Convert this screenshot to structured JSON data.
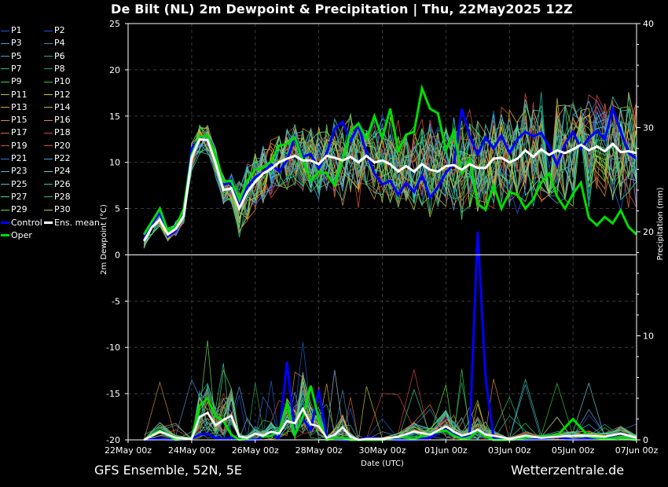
{
  "title": "De Bilt  (NL)  2m Dewpoint & Precipitation | Thu, 22May2025 12Z",
  "footer": {
    "left": "GFS Ensemble, 52N, 5E",
    "right": "Wetterzentrale.de"
  },
  "colors": {
    "background": "#000000",
    "grid": "#3a3a3a",
    "control": "#0000ff",
    "oper": "#00dd00",
    "mean": "#ffffff"
  },
  "legend": [
    {
      "label": "P1",
      "color": "#1d5fd6"
    },
    {
      "label": "P2",
      "color": "#2a4fe0"
    },
    {
      "label": "P3",
      "color": "#4f93d4"
    },
    {
      "label": "P4",
      "color": "#2c8fb8"
    },
    {
      "label": "P5",
      "color": "#29b3c8"
    },
    {
      "label": "P6",
      "color": "#1fb09a"
    },
    {
      "label": "P7",
      "color": "#2ec47a"
    },
    {
      "label": "P8",
      "color": "#22a85a"
    },
    {
      "label": "P9",
      "color": "#3fd05c"
    },
    {
      "label": "P10",
      "color": "#2fcf2f"
    },
    {
      "label": "P11",
      "color": "#b7c43a"
    },
    {
      "label": "P12",
      "color": "#d9c83a"
    },
    {
      "label": "P13",
      "color": "#c9a73a"
    },
    {
      "label": "P14",
      "color": "#d8a84a"
    },
    {
      "label": "P15",
      "color": "#d98c4a"
    },
    {
      "label": "P16",
      "color": "#d7873c"
    },
    {
      "label": "P17",
      "color": "#d86d3a"
    },
    {
      "label": "P18",
      "color": "#d04a2e"
    },
    {
      "label": "P19",
      "color": "#c94a5a"
    },
    {
      "label": "P20",
      "color": "#d84a3a"
    },
    {
      "label": "P21",
      "color": "#3f6fd6"
    },
    {
      "label": "P22",
      "color": "#4aa6d8"
    },
    {
      "label": "P23",
      "color": "#5aaed0"
    },
    {
      "label": "P24",
      "color": "#6ad0d8"
    },
    {
      "label": "P25",
      "color": "#3ad0b8"
    },
    {
      "label": "P26",
      "color": "#2fd0a0"
    },
    {
      "label": "P27",
      "color": "#4ad880"
    },
    {
      "label": "P28",
      "color": "#3ac060"
    },
    {
      "label": "P29",
      "color": "#6ae04a"
    },
    {
      "label": "P30",
      "color": "#c8c832"
    },
    {
      "label": "Control",
      "color": "#0000ff",
      "thick": true
    },
    {
      "label": "Ens. mean",
      "color": "#ffffff",
      "thick": true
    },
    {
      "label": "Oper",
      "color": "#00dd00",
      "thick": true
    }
  ],
  "chart_data": {
    "type": "line",
    "title": "De Bilt  (NL)  2m Dewpoint & Precipitation | Thu, 22May2025 12Z",
    "xlabel": "Date (UTC)",
    "ylabel": "2m Dewpoint (°C)",
    "ylabel_right": "Precipitation (mm)",
    "x_ticks": [
      "22May 00z",
      "24May 00z",
      "26May 00z",
      "28May 00z",
      "30May 00z",
      "01Jun 00z",
      "03Jun 00z",
      "05Jun 00z",
      "07Jun 00z"
    ],
    "x_range_hours": [
      0,
      384
    ],
    "ylim": [
      -20,
      25
    ],
    "yticks": [
      -20,
      -15,
      -10,
      -5,
      0,
      5,
      10,
      15,
      20,
      25
    ],
    "ylim_right": [
      0,
      40
    ],
    "yticks_right": [
      0,
      10,
      20,
      30,
      40
    ],
    "grid": true,
    "legend_position": "left",
    "dewpoint": {
      "x_hours": [
        12,
        18,
        24,
        30,
        36,
        42,
        48,
        54,
        60,
        66,
        72,
        78,
        84,
        90,
        96,
        102,
        108,
        114,
        120,
        126,
        132,
        138,
        144,
        150,
        156,
        162,
        168,
        174,
        180,
        186,
        192,
        198,
        204,
        210,
        216,
        222,
        228,
        234,
        240,
        246,
        252,
        258,
        264,
        270,
        276,
        282,
        288,
        294,
        300,
        306,
        312,
        318,
        324,
        330,
        336,
        342,
        348,
        354,
        360,
        366,
        372,
        378,
        384
      ],
      "series": [
        {
          "name": "Ens. mean",
          "values": [
            1.5,
            3.0,
            3.8,
            2.2,
            2.8,
            4.2,
            10.5,
            12.5,
            12.4,
            10.0,
            7.0,
            7.2,
            5.0,
            6.8,
            7.9,
            8.8,
            9.3,
            10.0,
            10.4,
            10.7,
            10.2,
            10.2,
            9.8,
            10.7,
            10.5,
            10.2,
            10.6,
            10.0,
            10.7,
            10.0,
            10.2,
            9.8,
            9.0,
            9.6,
            9.0,
            9.8,
            9.2,
            9.0,
            9.6,
            9.7,
            9.2,
            9.8,
            9.4,
            9.4,
            10.4,
            10.5,
            10.0,
            10.4,
            11.3,
            10.6,
            11.4,
            10.8,
            11.3,
            11.0,
            11.4,
            11.9,
            11.3,
            11.7,
            11.2,
            12.0,
            11.1,
            11.2,
            11.0
          ]
        },
        {
          "name": "Control",
          "values": [
            1.8,
            3.3,
            4.6,
            2.0,
            2.6,
            4.8,
            11.5,
            12.6,
            12.3,
            10.3,
            7.6,
            7.8,
            5.2,
            7.3,
            8.4,
            8.9,
            9.8,
            9.0,
            10.2,
            12.8,
            10.6,
            10.9,
            9.3,
            11.0,
            13.6,
            14.4,
            12.3,
            14.0,
            11.0,
            8.8,
            7.6,
            8.0,
            6.5,
            7.8,
            6.8,
            8.6,
            6.2,
            7.3,
            8.9,
            9.8,
            15.8,
            12.9,
            10.8,
            12.7,
            11.5,
            12.9,
            11.0,
            12.5,
            13.3,
            12.8,
            13.2,
            11.7,
            9.7,
            12.0,
            13.3,
            11.5,
            12.6,
            13.4,
            12.5,
            15.8,
            13.4,
            11.0,
            10.4
          ]
        },
        {
          "name": "Oper",
          "values": [
            2.2,
            3.6,
            5.0,
            2.6,
            3.0,
            5.0,
            10.8,
            12.8,
            12.9,
            10.8,
            7.9,
            8.0,
            6.0,
            8.0,
            9.2,
            9.4,
            10.1,
            11.8,
            12.0,
            12.7,
            10.2,
            8.0,
            9.0,
            8.8,
            7.5,
            10.2,
            13.4,
            14.2,
            12.5,
            15.0,
            12.6,
            15.8,
            11.2,
            13.0,
            13.3,
            18.0,
            15.8,
            15.3,
            11.3,
            13.4,
            8.8,
            10.3,
            5.5,
            4.9,
            7.5,
            5.0,
            6.8,
            6.5,
            5.0,
            6.0,
            7.8,
            8.8,
            6.3,
            5.0,
            6.6,
            7.8,
            4.0,
            3.2,
            4.1,
            3.4,
            4.8,
            3.0,
            2.2
          ]
        }
      ]
    },
    "precipitation": {
      "x_hours": [
        12,
        24,
        36,
        48,
        54,
        60,
        66,
        72,
        78,
        84,
        90,
        96,
        102,
        108,
        114,
        120,
        126,
        132,
        138,
        144,
        150,
        156,
        162,
        168,
        174,
        180,
        192,
        204,
        216,
        228,
        240,
        246,
        252,
        258,
        264,
        270,
        276,
        288,
        300,
        312,
        324,
        336,
        348,
        360,
        372,
        384
      ],
      "series": [
        {
          "name": "Ens. mean",
          "values": [
            0.0,
            0.8,
            0.2,
            0.1,
            2.2,
            2.6,
            1.4,
            1.9,
            2.3,
            0.3,
            0.2,
            0.6,
            0.4,
            0.8,
            0.6,
            1.8,
            1.6,
            3.0,
            1.5,
            1.3,
            0.2,
            0.5,
            1.2,
            0.3,
            0.0,
            0.1,
            0.1,
            0.3,
            0.8,
            0.5,
            1.3,
            0.8,
            0.4,
            0.6,
            1.0,
            0.5,
            0.4,
            0.1,
            0.4,
            0.2,
            0.3,
            0.4,
            0.4,
            0.3,
            0.6,
            0.2
          ]
        },
        {
          "name": "Control",
          "values": [
            0.0,
            0.1,
            0.0,
            0.1,
            0.5,
            0.6,
            0.2,
            0.1,
            0.2,
            0.1,
            0.0,
            0.0,
            0.3,
            0.5,
            0.2,
            7.5,
            0.5,
            2.0,
            1.0,
            4.8,
            0.3,
            0.1,
            0.0,
            0.0,
            0.0,
            0.2,
            0.1,
            0.0,
            0.0,
            0.2,
            1.0,
            0.5,
            0.3,
            0.5,
            20.0,
            6.0,
            0.2,
            0.1,
            0.0,
            0.1,
            0.3,
            0.0,
            0.1,
            0.2,
            0.2,
            0.0
          ]
        },
        {
          "name": "Oper",
          "values": [
            0.0,
            0.9,
            0.0,
            0.2,
            3.3,
            4.0,
            2.3,
            1.8,
            0.5,
            0.0,
            0.1,
            0.6,
            0.3,
            0.4,
            0.8,
            3.5,
            0.5,
            2.2,
            5.2,
            2.0,
            0.0,
            0.2,
            0.2,
            0.0,
            0.0,
            0.0,
            0.0,
            0.3,
            0.1,
            0.6,
            0.9,
            0.4,
            0.1,
            0.2,
            0.9,
            0.3,
            0.0,
            0.0,
            0.2,
            0.3,
            0.4,
            2.0,
            0.3,
            0.1,
            0.2,
            0.0
          ]
        }
      ]
    }
  }
}
